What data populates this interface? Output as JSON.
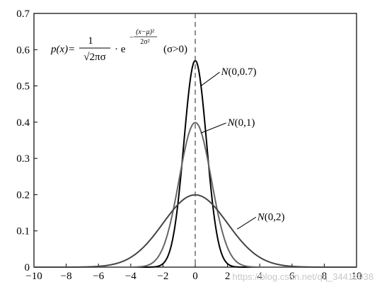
{
  "chart_data": {
    "type": "line",
    "title": "",
    "xlabel": "",
    "ylabel": "",
    "xlim": [
      -10,
      10
    ],
    "ylim": [
      0,
      0.7
    ],
    "x_ticks": [
      -10,
      -8,
      -6,
      -4,
      -2,
      0,
      2,
      4,
      6,
      8,
      10
    ],
    "x_tick_labels": [
      "−10",
      "−8",
      "−6",
      "−4",
      "−2",
      "0",
      "2",
      "4",
      "6",
      "8",
      "10"
    ],
    "y_ticks": [
      0,
      0.1,
      0.2,
      0.3,
      0.4,
      0.5,
      0.6,
      0.7
    ],
    "y_tick_labels": [
      "0",
      "0.1",
      "0.2",
      "0.3",
      "0.4",
      "0.5",
      "0.6",
      "0.7"
    ],
    "grid": false,
    "mean_line_x": 0,
    "series": [
      {
        "name": "N(0,0.7)",
        "mu": 0,
        "sigma": 0.7,
        "color": "#000000",
        "label_at": [
          1.6,
          0.53
        ],
        "leader_to": [
          0.35,
          0.5
        ]
      },
      {
        "name": "N(0,1)",
        "mu": 0,
        "sigma": 1,
        "color": "#666666",
        "label_at": [
          2.0,
          0.39
        ],
        "leader_to": [
          0.35,
          0.37
        ]
      },
      {
        "name": "N(0,2)",
        "mu": 0,
        "sigma": 2,
        "color": "#444444",
        "label_at": [
          3.85,
          0.13
        ],
        "leader_to": [
          2.6,
          0.105
        ]
      }
    ],
    "annotations": {
      "formula_lhs": "p(x)=",
      "formula_num": "1",
      "formula_den": "√2πσ",
      "formula_dot": "· e",
      "formula_exp_num": "(x−μ)²",
      "formula_exp_den": "2σ²",
      "formula_exp_sign": "−",
      "formula_cond": "(σ>0)"
    }
  },
  "watermark": "https://blog.csdn.net/qq_34418938"
}
